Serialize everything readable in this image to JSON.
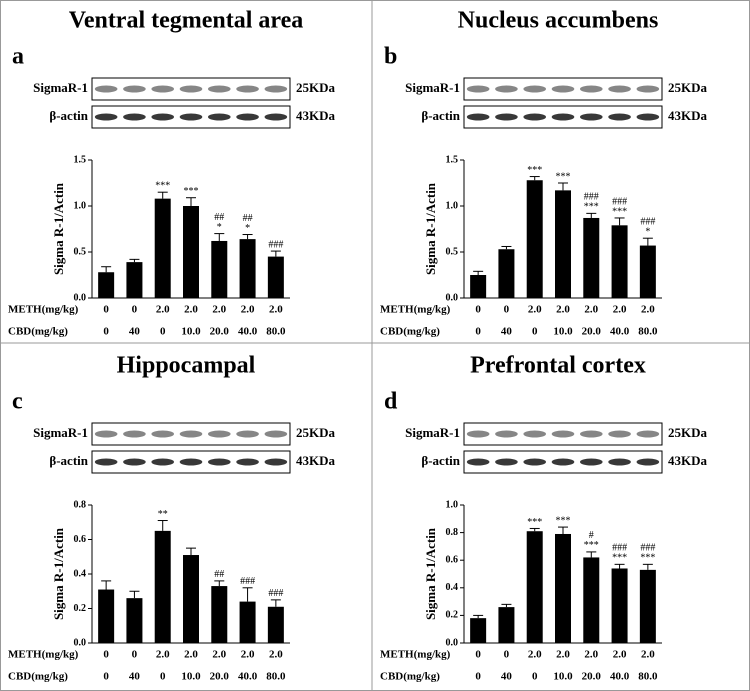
{
  "chart_data": [
    {
      "type": "bar",
      "title": "Ventral tegmental area",
      "panel": "a",
      "blot_labels": [
        {
          "name": "SigmaR-1",
          "size": "25KDa"
        },
        {
          "name": "β-actin",
          "size": "43KDa"
        }
      ],
      "ylabel": "Sigma R-1/Actin",
      "ylim": [
        0,
        1.5
      ],
      "yticks": [
        {
          "value": 0,
          "label": "0.0"
        },
        0.5,
        {
          "value": 1,
          "label": "1.0"
        },
        1.5
      ],
      "values": [
        0.28,
        0.39,
        1.08,
        1.0,
        0.62,
        0.64,
        0.45
      ],
      "errors": [
        0.06,
        0.03,
        0.07,
        0.09,
        0.08,
        0.05,
        0.06
      ],
      "annotations": [
        [],
        [],
        [
          "***"
        ],
        [
          "***"
        ],
        [
          "##",
          "*"
        ],
        [
          "##",
          "*"
        ],
        [
          "###"
        ]
      ],
      "treatments": [
        {
          "label": "METH(mg/kg)",
          "values": [
            "0",
            "0",
            "2.0",
            "2.0",
            "2.0",
            "2.0",
            "2.0"
          ]
        },
        {
          "label": "CBD(mg/kg)",
          "values": [
            "0",
            "40",
            "0",
            "10.0",
            "20.0",
            "40.0",
            "80.0"
          ]
        }
      ]
    },
    {
      "type": "bar",
      "title": "Nucleus accumbens",
      "panel": "b",
      "blot_labels": [
        {
          "name": "SigmaR-1",
          "size": "25KDa"
        },
        {
          "name": "β-actin",
          "size": "43KDa"
        }
      ],
      "ylabel": "Sigma R-1/Actin",
      "ylim": [
        0,
        1.5
      ],
      "yticks": [
        {
          "value": 0,
          "label": "0.0"
        },
        0.5,
        {
          "value": 1,
          "label": "1.0"
        },
        1.5
      ],
      "values": [
        0.25,
        0.53,
        1.28,
        1.17,
        0.87,
        0.79,
        0.57
      ],
      "errors": [
        0.04,
        0.03,
        0.04,
        0.08,
        0.05,
        0.08,
        0.08
      ],
      "annotations": [
        [],
        [],
        [
          "***"
        ],
        [
          "***"
        ],
        [
          "###",
          "***"
        ],
        [
          "###",
          "***"
        ],
        [
          "###",
          "*"
        ]
      ],
      "treatments": [
        {
          "label": "METH(mg/kg)",
          "values": [
            "0",
            "0",
            "2.0",
            "2.0",
            "2.0",
            "2.0",
            "2.0"
          ]
        },
        {
          "label": "CBD(mg/kg)",
          "values": [
            "0",
            "40",
            "0",
            "10.0",
            "20.0",
            "40.0",
            "80.0"
          ]
        }
      ]
    },
    {
      "type": "bar",
      "title": "Hippocampal",
      "panel": "c",
      "blot_labels": [
        {
          "name": "SigmaR-1",
          "size": "25KDa"
        },
        {
          "name": "β-actin",
          "size": "43KDa"
        }
      ],
      "ylabel": "Sigma R-1/Actin",
      "ylim": [
        0,
        0.8
      ],
      "yticks": [
        {
          "value": 0,
          "label": "0.0"
        },
        0.2,
        0.4,
        0.6,
        0.8
      ],
      "values": [
        0.31,
        0.26,
        0.65,
        0.51,
        0.33,
        0.24,
        0.21
      ],
      "errors": [
        0.05,
        0.04,
        0.06,
        0.04,
        0.03,
        0.08,
        0.04
      ],
      "annotations": [
        [],
        [],
        [
          "**"
        ],
        [],
        [
          "##"
        ],
        [
          "###"
        ],
        [
          "###"
        ]
      ],
      "treatments": [
        {
          "label": "METH(mg/kg)",
          "values": [
            "0",
            "0",
            "2.0",
            "2.0",
            "2.0",
            "2.0",
            "2.0"
          ]
        },
        {
          "label": "CBD(mg/kg)",
          "values": [
            "0",
            "40",
            "0",
            "10.0",
            "20.0",
            "40.0",
            "80.0"
          ]
        }
      ]
    },
    {
      "type": "bar",
      "title": "Prefrontal cortex",
      "panel": "d",
      "blot_labels": [
        {
          "name": "SigmaR-1",
          "size": "25KDa"
        },
        {
          "name": "β-actin",
          "size": "43KDa"
        }
      ],
      "ylabel": "Sigma R-1/Actin",
      "ylim": [
        0,
        1.0
      ],
      "yticks": [
        {
          "value": 0,
          "label": "0.0"
        },
        0.2,
        0.4,
        0.6,
        0.8,
        {
          "value": 1,
          "label": "1.0"
        }
      ],
      "values": [
        0.18,
        0.26,
        0.81,
        0.79,
        0.62,
        0.54,
        0.53
      ],
      "errors": [
        0.02,
        0.02,
        0.02,
        0.05,
        0.04,
        0.03,
        0.04
      ],
      "annotations": [
        [],
        [],
        [
          "***"
        ],
        [
          "***"
        ],
        [
          "#",
          "***"
        ],
        [
          "###",
          "***"
        ],
        [
          "###",
          "***"
        ]
      ],
      "treatments": [
        {
          "label": "METH(mg/kg)",
          "values": [
            "0",
            "0",
            "2.0",
            "2.0",
            "2.0",
            "2.0",
            "2.0"
          ]
        },
        {
          "label": "CBD(mg/kg)",
          "values": [
            "0",
            "40",
            "0",
            "10.0",
            "20.0",
            "40.0",
            "80.0"
          ]
        }
      ]
    }
  ]
}
